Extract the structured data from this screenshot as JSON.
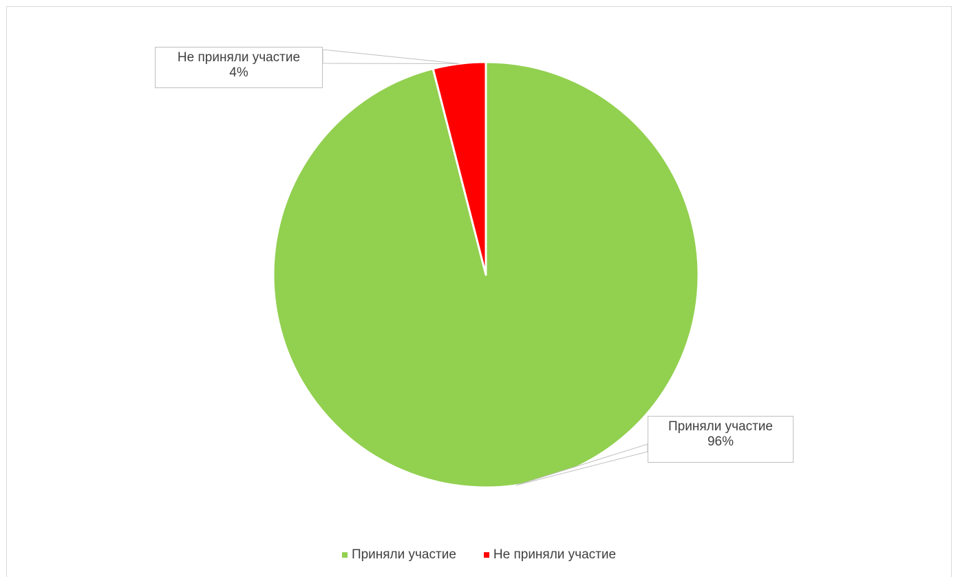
{
  "chart_data": {
    "type": "pie",
    "title": "",
    "start_angle_deg": 0,
    "direction": "clockwise",
    "slices": [
      {
        "label": "Приняли участие",
        "value": 96,
        "value_label": "96%",
        "color": "#92d050"
      },
      {
        "label": "Не приняли участие",
        "value": 4,
        "value_label": "4%",
        "color": "#ff0000"
      }
    ],
    "legend": {
      "position": "bottom",
      "items": [
        "Приняли участие",
        "Не приняли участие"
      ]
    },
    "data_labels": true
  }
}
